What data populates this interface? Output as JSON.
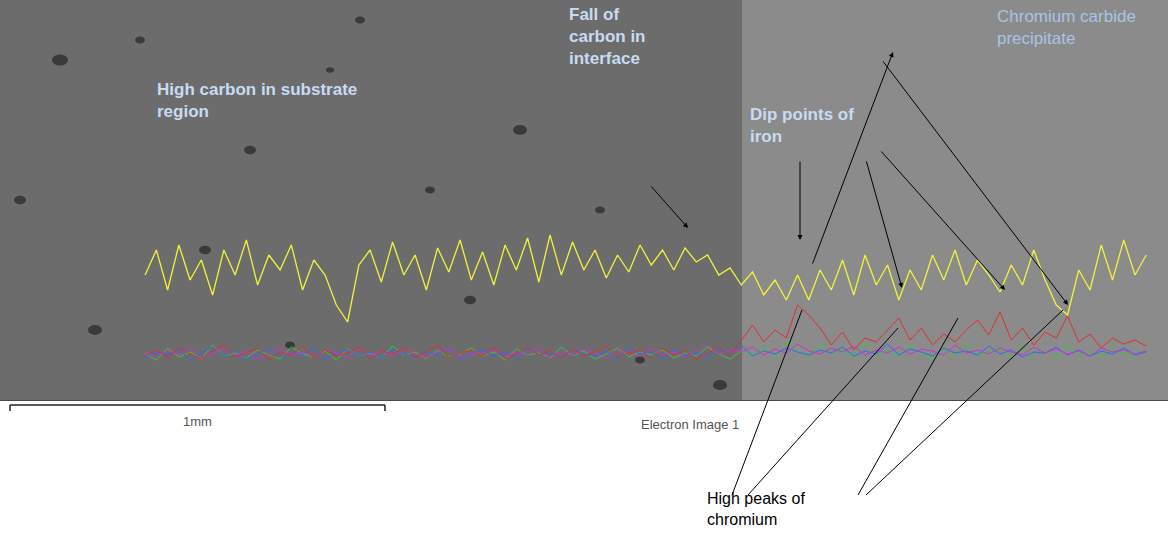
{
  "chart_data": {
    "type": "line",
    "x": [
      0,
      30,
      60,
      90,
      120,
      150,
      180,
      210,
      240,
      270,
      300,
      330,
      360,
      390,
      420,
      450,
      480,
      510,
      540,
      570,
      600,
      630,
      660,
      690,
      720,
      750,
      780,
      810,
      840,
      870,
      900,
      930,
      960,
      990,
      1020,
      1050,
      1080,
      1110,
      1140,
      1170,
      1200,
      1230,
      1260,
      1290,
      1320,
      1350,
      1380,
      1410,
      1440,
      1470,
      1500,
      1530,
      1560,
      1590,
      1620,
      1650,
      1680,
      1710,
      1740,
      1770,
      1800,
      1830,
      1860,
      1890,
      1920,
      1950,
      1980,
      2010,
      2040,
      2070,
      2100,
      2130,
      2160,
      2190,
      2220,
      2250,
      2280,
      2310,
      2340,
      2370,
      2400,
      2430,
      2460,
      2490,
      2520,
      2550,
      2580,
      2610,
      2640,
      2670
    ],
    "series": [
      {
        "color": "#33cc33",
        "values": [
          46,
          40,
          52,
          43,
          48,
          41,
          55,
          44,
          47,
          42,
          50,
          45,
          41,
          53,
          46,
          43,
          49,
          40,
          51,
          44,
          47,
          42,
          54,
          45,
          48,
          41,
          50,
          43,
          46,
          52,
          44,
          48,
          40,
          51,
          45,
          47,
          42,
          53,
          44,
          49,
          41,
          46,
          52,
          43,
          48,
          45,
          50,
          42,
          47,
          44,
          53,
          46,
          41,
          49,
          45,
          52,
          43,
          57,
          48,
          44,
          55,
          47,
          50,
          43,
          58,
          46,
          49,
          44,
          54,
          47,
          42,
          51,
          45,
          56,
          44,
          48,
          50,
          43,
          53,
          46,
          49,
          42,
          55,
          45,
          48,
          43,
          52,
          46,
          44,
          50
        ]
      },
      {
        "color": "#3366ff",
        "values": [
          42,
          48,
          45,
          51,
          40,
          47,
          53,
          44,
          49,
          41,
          46,
          52,
          43,
          48,
          45,
          54,
          41,
          47,
          50,
          44,
          48,
          42,
          51,
          46,
          43,
          49,
          45,
          53,
          41,
          47,
          50,
          44,
          48,
          42,
          52,
          45,
          47,
          43,
          51,
          46,
          44,
          49,
          41,
          53,
          46,
          48,
          42,
          50,
          45,
          47,
          43,
          51,
          47,
          55,
          44,
          49,
          46,
          52,
          48,
          45,
          50,
          47,
          53,
          44,
          49,
          46,
          56,
          45,
          51,
          48,
          44,
          52,
          47,
          49,
          45,
          54,
          46,
          50,
          43,
          48,
          47,
          53,
          45,
          50,
          44,
          49,
          46,
          52,
          45,
          48
        ]
      },
      {
        "color": "#cc33cc",
        "values": [
          48,
          43,
          50,
          45,
          53,
          42,
          47,
          51,
          44,
          49,
          41,
          46,
          52,
          45,
          48,
          43,
          50,
          47,
          42,
          53,
          45,
          49,
          44,
          51,
          46,
          42,
          48,
          52,
          43,
          47,
          46,
          50,
          43,
          48,
          45,
          53,
          41,
          49,
          44,
          51,
          47,
          42,
          50,
          46,
          44,
          52,
          45,
          48,
          43,
          49,
          55,
          46,
          50,
          48,
          53,
          45,
          51,
          47,
          56,
          49,
          46,
          52,
          48,
          54,
          45,
          50,
          47,
          53,
          46,
          51,
          49,
          45,
          55,
          47,
          50,
          46,
          52,
          48,
          45,
          53,
          47,
          51,
          46,
          49,
          44,
          52,
          48,
          50,
          46,
          49
        ]
      },
      {
        "color": "#e03030",
        "values": [
          44,
          50,
          42,
          53,
          46,
          41,
          49,
          55,
          43,
          47,
          52,
          40,
          48,
          45,
          54,
          42,
          50,
          44,
          47,
          53,
          41,
          49,
          46,
          52,
          43,
          48,
          55,
          42,
          47,
          50,
          44,
          52,
          41,
          46,
          53,
          45,
          49,
          42,
          51,
          44,
          48,
          54,
          43,
          47,
          50,
          42,
          52,
          45,
          49,
          41,
          47,
          53,
          44,
          60,
          75,
          58,
          70,
          62,
          95,
          85,
          72,
          55,
          68,
          50,
          62,
          58,
          70,
          82,
          60,
          72,
          55,
          66,
          58,
          70,
          80,
          65,
          88,
          60,
          72,
          55,
          68,
          62,
          84,
          58,
          66,
          52,
          62,
          56,
          60,
          54
        ]
      },
      {
        "color": "#f2f23a",
        "values": [
          125,
          150,
          110,
          155,
          120,
          140,
          105,
          150,
          125,
          160,
          115,
          145,
          130,
          155,
          110,
          140,
          125,
          95,
          78,
          135,
          150,
          118,
          158,
          125,
          145,
          110,
          152,
          128,
          160,
          120,
          148,
          115,
          155,
          130,
          162,
          118,
          165,
          125,
          158,
          130,
          150,
          122,
          145,
          128,
          155,
          135,
          150,
          130,
          152,
          138,
          145,
          125,
          132,
          115,
          128,
          105,
          120,
          100,
          125,
          100,
          130,
          110,
          140,
          105,
          145,
          115,
          135,
          100,
          130,
          110,
          145,
          120,
          150,
          115,
          140,
          125,
          108,
          135,
          115,
          150,
          120,
          95,
          85,
          130,
          110,
          155,
          120,
          160,
          125,
          145
        ]
      }
    ],
    "xlim": [
      -387,
      2728
    ],
    "ylim": [
      0,
      400
    ],
    "grid": false,
    "tick_labels": false,
    "annotations": [
      "High carbon in substrate region",
      "Fall of carbon in interface",
      "Dip points of iron",
      "Chromium carbide precipitate",
      "High peaks of chromium"
    ],
    "scale_bar": {
      "value": 1000,
      "label": "1mm"
    },
    "caption": "Electron Image 1"
  }
}
